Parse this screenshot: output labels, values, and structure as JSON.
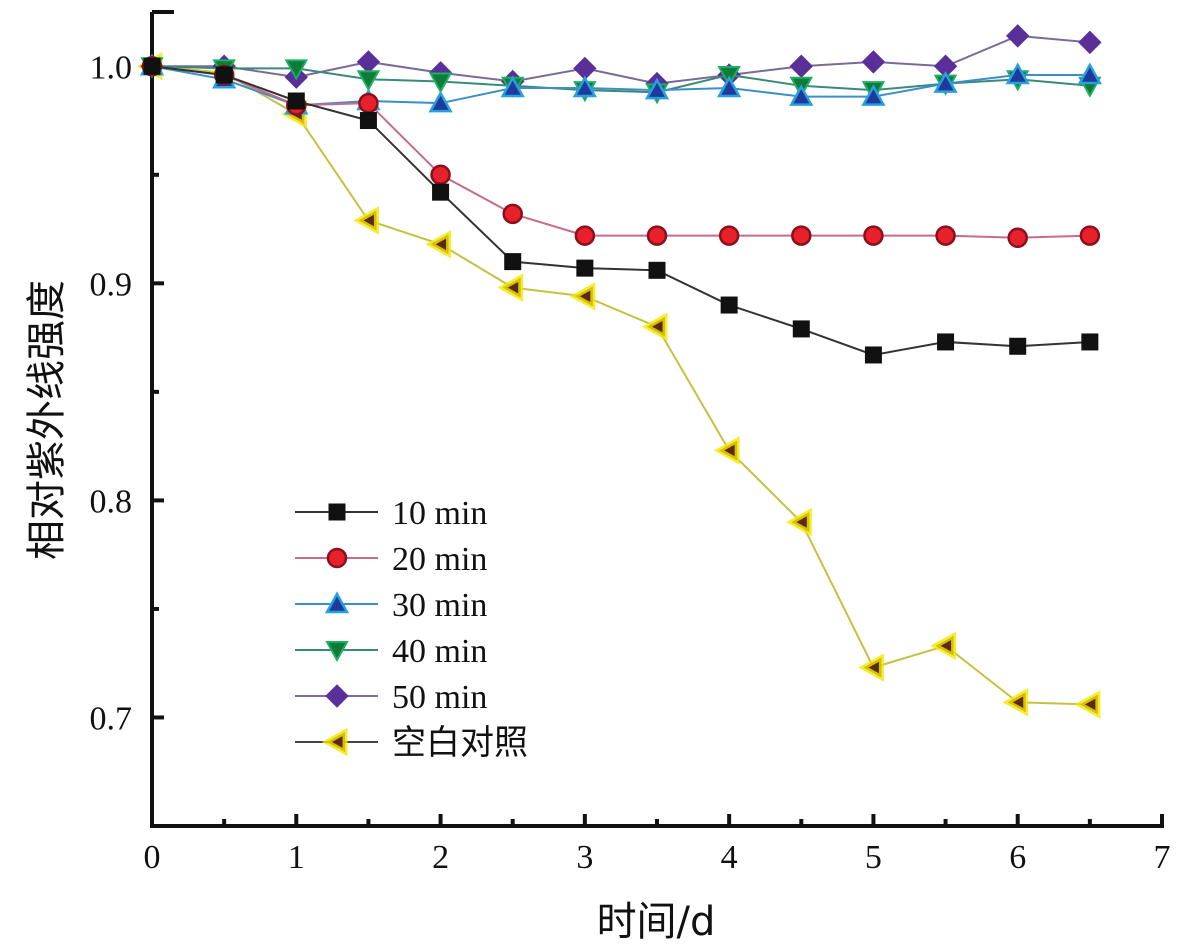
{
  "chart_data": {
    "type": "line",
    "title": "",
    "xlabel": "时间/d",
    "ylabel": "相对紫外线强度",
    "xlim": [
      0,
      7
    ],
    "ylim": [
      0.65,
      1.025
    ],
    "xticks": [
      0,
      1,
      2,
      3,
      4,
      5,
      6,
      7
    ],
    "xtick_labels": [
      "0",
      "1",
      "2",
      "3",
      "4",
      "5",
      "6",
      "7"
    ],
    "xminor": [
      0.5,
      1.5,
      2.5,
      3.5,
      4.5,
      5.5,
      6.5
    ],
    "yticks": [
      0.7,
      0.8,
      0.9,
      1.0
    ],
    "ytick_labels": [
      "0.7",
      "0.8",
      "0.9",
      "1.0"
    ],
    "yminor": [
      0.75,
      0.85,
      0.95
    ],
    "grid": false,
    "legend_position": "lower-left",
    "x": [
      0,
      0.5,
      1,
      1.5,
      2,
      2.5,
      3,
      3.5,
      4,
      4.5,
      5,
      5.5,
      6,
      6.5
    ],
    "series": [
      {
        "name": "10 min",
        "marker": "square",
        "color": "#111111",
        "line_color": "#333333",
        "values": [
          1.0,
          0.996,
          0.984,
          0.975,
          0.942,
          0.91,
          0.907,
          0.906,
          0.89,
          0.879,
          0.867,
          0.873,
          0.871,
          0.873
        ]
      },
      {
        "name": "20 min",
        "marker": "circle",
        "color": "#e8202a",
        "line_color": "#c86a8a",
        "values": [
          1.0,
          0.996,
          0.982,
          0.983,
          0.95,
          0.932,
          0.922,
          0.922,
          0.922,
          0.922,
          0.922,
          0.922,
          0.921,
          0.922
        ]
      },
      {
        "name": "30 min",
        "marker": "triangle-up",
        "color": "#1f3a9a",
        "line_color": "#3a8fc8",
        "values": [
          1.0,
          0.994,
          0.982,
          0.984,
          0.983,
          0.99,
          0.99,
          0.989,
          0.99,
          0.986,
          0.986,
          0.992,
          0.996,
          0.996
        ]
      },
      {
        "name": "40 min",
        "marker": "triangle-down",
        "color": "#0f7a3a",
        "line_color": "#3a8a7a",
        "values": [
          1.0,
          0.999,
          0.999,
          0.994,
          0.993,
          0.991,
          0.989,
          0.988,
          0.996,
          0.991,
          0.989,
          0.992,
          0.994,
          0.991
        ]
      },
      {
        "name": "50 min",
        "marker": "diamond",
        "color": "#5a2f9a",
        "line_color": "#7a6a9a",
        "values": [
          1.0,
          1.0,
          0.995,
          1.002,
          0.997,
          0.993,
          0.999,
          0.992,
          0.996,
          1.0,
          1.002,
          1.0,
          1.014,
          1.011
        ]
      },
      {
        "name": "空白对照",
        "marker": "triangle-left",
        "color": "#5a2a14",
        "line_color": "#c8c040",
        "halo": "#f5e600",
        "values": [
          1.0,
          0.997,
          0.978,
          0.929,
          0.918,
          0.898,
          0.894,
          0.88,
          0.823,
          0.79,
          0.723,
          0.733,
          0.707,
          0.706
        ]
      }
    ]
  }
}
